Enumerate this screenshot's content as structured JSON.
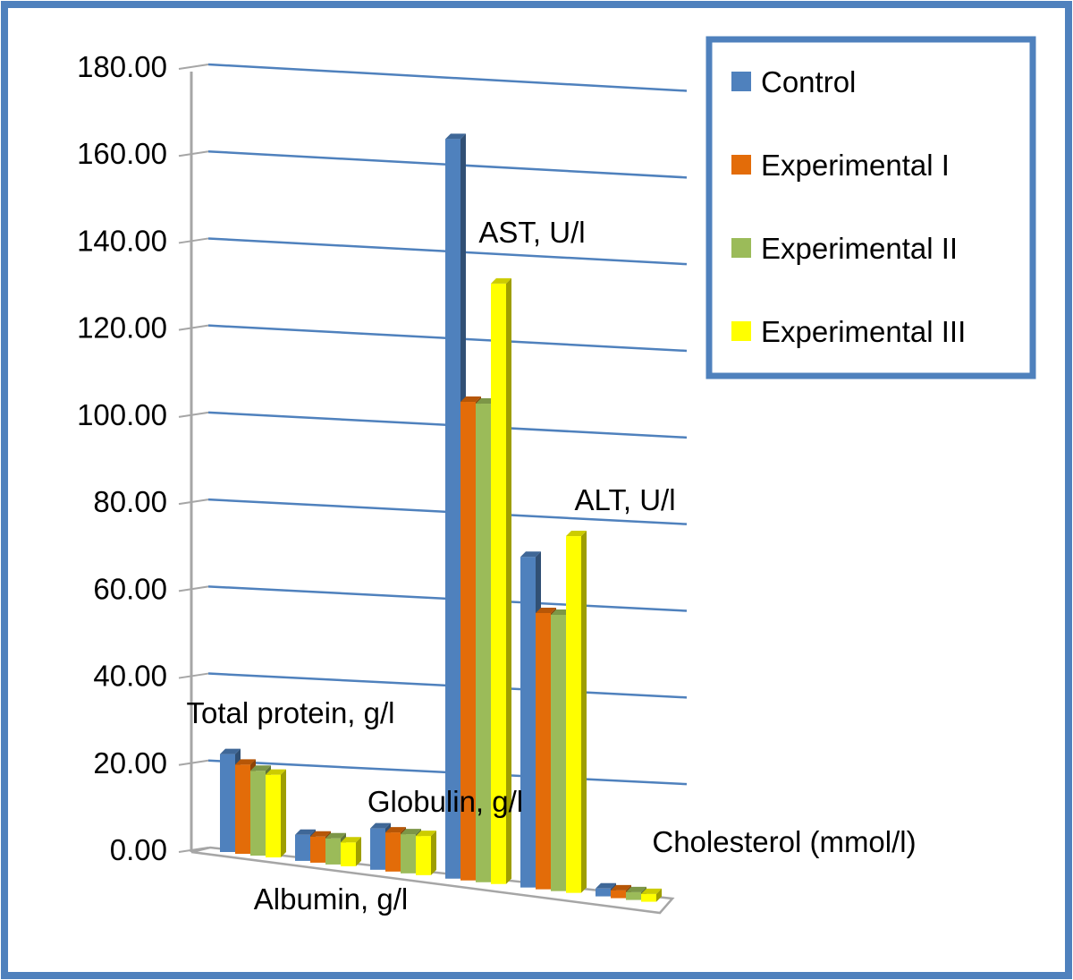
{
  "chart_data": {
    "type": "bar",
    "title": "",
    "xlabel": "",
    "ylabel": "",
    "ylim": [
      0,
      180
    ],
    "y_ticks": [
      "0.00",
      "20.00",
      "40.00",
      "60.00",
      "80.00",
      "100.00",
      "120.00",
      "140.00",
      "160.00",
      "180.00"
    ],
    "grid": true,
    "legend_position": "top-right",
    "categories": [
      "Total protein, g/l",
      "Albumin, g/l",
      "Globulin, g/l",
      "AST, U/l",
      "ALT, U/l",
      "Cholesterol (mmol/l)"
    ],
    "series": [
      {
        "name": "Control",
        "color": "#4F81BD",
        "values": [
          22.5,
          6.0,
          9.5,
          170.0,
          76.0,
          1.8
        ]
      },
      {
        "name": "Experimental I",
        "color": "#E36C09",
        "values": [
          20.5,
          6.0,
          9.0,
          110.0,
          63.5,
          1.8
        ]
      },
      {
        "name": "Experimental II",
        "color": "#9BBB59",
        "values": [
          19.5,
          6.0,
          9.0,
          110.0,
          63.5,
          1.8
        ]
      },
      {
        "name": "Experimental III",
        "color": "#FFFF00",
        "values": [
          19.0,
          5.5,
          9.0,
          138.0,
          82.0,
          1.8
        ]
      }
    ],
    "colors": {
      "frame": "#4F81BD",
      "gridline": "#4F81BD",
      "axis": "#A6A6A6"
    }
  }
}
